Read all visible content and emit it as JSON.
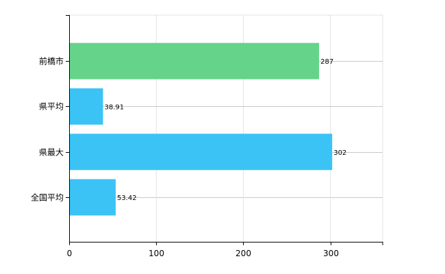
{
  "chart_data": {
    "type": "bar",
    "orientation": "horizontal",
    "title": "",
    "xlabel": "",
    "ylabel": "",
    "categories": [
      "前橋市",
      "県平均",
      "県最大",
      "全国平均"
    ],
    "values": [
      287,
      38.91,
      302,
      53.42
    ],
    "value_labels": [
      "287",
      "38.91",
      "302",
      "53.42"
    ],
    "bar_colors": [
      "#66d38a",
      "#3bc3f5",
      "#3bc3f5",
      "#3bc3f5"
    ],
    "xlim": [
      0,
      360
    ],
    "xticks": [
      0,
      100,
      200,
      300
    ],
    "xtick_labels": [
      "0",
      "100",
      "200",
      "300"
    ],
    "grid": true,
    "legend": "none"
  }
}
